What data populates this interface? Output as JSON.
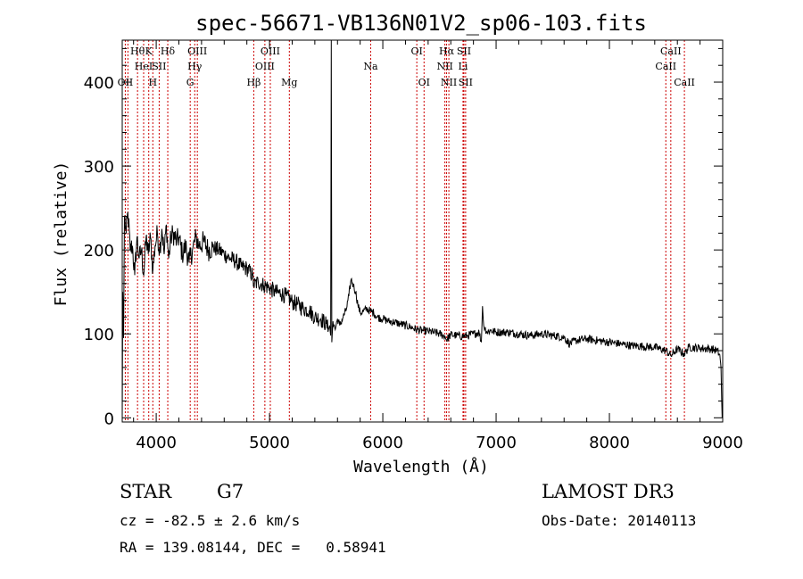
{
  "chart_data": {
    "type": "line",
    "title": "spec-56671-VB136N01V2_sp06-103.fits",
    "xlabel": "Wavelength (Å)",
    "ylabel": "Flux (relative)",
    "xlim": [
      3700,
      9000
    ],
    "ylim": [
      -5,
      450
    ],
    "x_ticks": [
      4000,
      5000,
      6000,
      7000,
      8000,
      9000
    ],
    "y_ticks": [
      0,
      100,
      200,
      300,
      400
    ],
    "series": [
      {
        "name": "flux",
        "points": [
          [
            3700,
            0
          ],
          [
            3705,
            150
          ],
          [
            3712,
            95
          ],
          [
            3720,
            240
          ],
          [
            3735,
            220
          ],
          [
            3750,
            245
          ],
          [
            3770,
            200
          ],
          [
            3790,
            205
          ],
          [
            3810,
            170
          ],
          [
            3830,
            215
          ],
          [
            3850,
            190
          ],
          [
            3870,
            200
          ],
          [
            3890,
            170
          ],
          [
            3910,
            215
          ],
          [
            3930,
            195
          ],
          [
            3950,
            215
          ],
          [
            3970,
            175
          ],
          [
            3990,
            205
          ],
          [
            4010,
            220
          ],
          [
            4030,
            200
          ],
          [
            4050,
            225
          ],
          [
            4070,
            195
          ],
          [
            4090,
            230
          ],
          [
            4110,
            190
          ],
          [
            4130,
            215
          ],
          [
            4150,
            220
          ],
          [
            4180,
            210
          ],
          [
            4200,
            215
          ],
          [
            4230,
            195
          ],
          [
            4260,
            205
          ],
          [
            4290,
            185
          ],
          [
            4320,
            200
          ],
          [
            4350,
            215
          ],
          [
            4380,
            205
          ],
          [
            4420,
            210
          ],
          [
            4460,
            200
          ],
          [
            4500,
            203
          ],
          [
            4550,
            200
          ],
          [
            4600,
            195
          ],
          [
            4650,
            190
          ],
          [
            4700,
            187
          ],
          [
            4750,
            180
          ],
          [
            4800,
            178
          ],
          [
            4850,
            170
          ],
          [
            4861,
            158
          ],
          [
            4900,
            162
          ],
          [
            4950,
            158
          ],
          [
            5000,
            155
          ],
          [
            5050,
            150
          ],
          [
            5100,
            148
          ],
          [
            5150,
            145
          ],
          [
            5200,
            138
          ],
          [
            5250,
            135
          ],
          [
            5300,
            130
          ],
          [
            5350,
            128
          ],
          [
            5400,
            120
          ],
          [
            5450,
            118
          ],
          [
            5500,
            112
          ],
          [
            5520,
            105
          ],
          [
            5530,
            110
          ],
          [
            5540,
            98
          ],
          [
            5545,
            470
          ],
          [
            5550,
            90
          ],
          [
            5560,
            115
          ],
          [
            5580,
            105
          ],
          [
            5600,
            118
          ],
          [
            5620,
            110
          ],
          [
            5650,
            120
          ],
          [
            5680,
            130
          ],
          [
            5700,
            145
          ],
          [
            5720,
            165
          ],
          [
            5740,
            158
          ],
          [
            5760,
            150
          ],
          [
            5780,
            135
          ],
          [
            5800,
            125
          ],
          [
            5830,
            127
          ],
          [
            5860,
            130
          ],
          [
            5890,
            127
          ],
          [
            5920,
            125
          ],
          [
            5950,
            120
          ],
          [
            6000,
            118
          ],
          [
            6050,
            115
          ],
          [
            6100,
            114
          ],
          [
            6150,
            112
          ],
          [
            6200,
            110
          ],
          [
            6250,
            108
          ],
          [
            6300,
            105
          ],
          [
            6350,
            104
          ],
          [
            6400,
            103
          ],
          [
            6450,
            102
          ],
          [
            6500,
            100
          ],
          [
            6550,
            97
          ],
          [
            6563,
            93
          ],
          [
            6600,
            99
          ],
          [
            6650,
            98
          ],
          [
            6700,
            97
          ],
          [
            6750,
            98
          ],
          [
            6800,
            100
          ],
          [
            6850,
            102
          ],
          [
            6870,
            90
          ],
          [
            6880,
            133
          ],
          [
            6890,
            110
          ],
          [
            6920,
            102
          ],
          [
            6950,
            104
          ],
          [
            7000,
            102
          ],
          [
            7100,
            102
          ],
          [
            7200,
            100
          ],
          [
            7300,
            98
          ],
          [
            7400,
            100
          ],
          [
            7500,
            98
          ],
          [
            7600,
            96
          ],
          [
            7650,
            88
          ],
          [
            7700,
            92
          ],
          [
            7800,
            94
          ],
          [
            7900,
            92
          ],
          [
            8000,
            90
          ],
          [
            8100,
            88
          ],
          [
            8200,
            86
          ],
          [
            8300,
            85
          ],
          [
            8400,
            84
          ],
          [
            8500,
            80
          ],
          [
            8542,
            74
          ],
          [
            8600,
            82
          ],
          [
            8662,
            76
          ],
          [
            8700,
            84
          ],
          [
            8800,
            83
          ],
          [
            8900,
            82
          ],
          [
            8950,
            80
          ],
          [
            8975,
            75
          ],
          [
            8985,
            60
          ],
          [
            8995,
            0
          ]
        ]
      }
    ],
    "lines": [
      {
        "x": 3727,
        "labels": [
          "OII"
        ],
        "row": 3
      },
      {
        "x": 3750,
        "labels": [],
        "row": 0
      },
      {
        "x": 3835,
        "labels": [
          "Hθ"
        ],
        "row": 1
      },
      {
        "x": 3889,
        "labels": [
          "HeI"
        ],
        "row": 2
      },
      {
        "x": 3934,
        "labels": [
          "K"
        ],
        "row": 1
      },
      {
        "x": 3970,
        "labels": [
          "H"
        ],
        "row": 3
      },
      {
        "x": 4026,
        "labels": [
          "SII"
        ],
        "row": 2
      },
      {
        "x": 4102,
        "labels": [
          "Hδ"
        ],
        "row": 1
      },
      {
        "x": 4300,
        "labels": [
          "G"
        ],
        "row": 3
      },
      {
        "x": 4340,
        "labels": [
          "Hγ"
        ],
        "row": 2
      },
      {
        "x": 4363,
        "labels": [
          "OIII"
        ],
        "row": 1
      },
      {
        "x": 4861,
        "labels": [
          "Hβ"
        ],
        "row": 3
      },
      {
        "x": 4959,
        "labels": [
          "OIII"
        ],
        "row": 2
      },
      {
        "x": 5007,
        "labels": [
          "OIII"
        ],
        "row": 1
      },
      {
        "x": 5175,
        "labels": [
          "Mg"
        ],
        "row": 3
      },
      {
        "x": 5893,
        "labels": [
          "Na"
        ],
        "row": 2
      },
      {
        "x": 6300,
        "labels": [
          "OI"
        ],
        "row": 1
      },
      {
        "x": 6364,
        "labels": [
          "OI"
        ],
        "row": 3
      },
      {
        "x": 6548,
        "labels": [
          "NII"
        ],
        "row": 2
      },
      {
        "x": 6563,
        "labels": [
          "Hα"
        ],
        "row": 1
      },
      {
        "x": 6583,
        "labels": [
          "NII"
        ],
        "row": 3
      },
      {
        "x": 6708,
        "labels": [
          "Li"
        ],
        "row": 2
      },
      {
        "x": 6716,
        "labels": [
          "SII"
        ],
        "row": 1
      },
      {
        "x": 6731,
        "labels": [
          "SII"
        ],
        "row": 3
      },
      {
        "x": 8498,
        "labels": [
          "CaII"
        ],
        "row": 2
      },
      {
        "x": 8542,
        "labels": [
          "CaII"
        ],
        "row": 1
      },
      {
        "x": 8662,
        "labels": [
          "CaII"
        ],
        "row": 3
      }
    ],
    "line_color": "#cc0000"
  },
  "info": {
    "class": "STAR",
    "subclass": "G7",
    "survey": "LAMOST DR3",
    "cz": "cz = -82.5 ± 2.6 km/s",
    "obs_date": "Obs-Date: 20140113",
    "coords": "RA = 139.08144, DEC =   0.58941"
  }
}
